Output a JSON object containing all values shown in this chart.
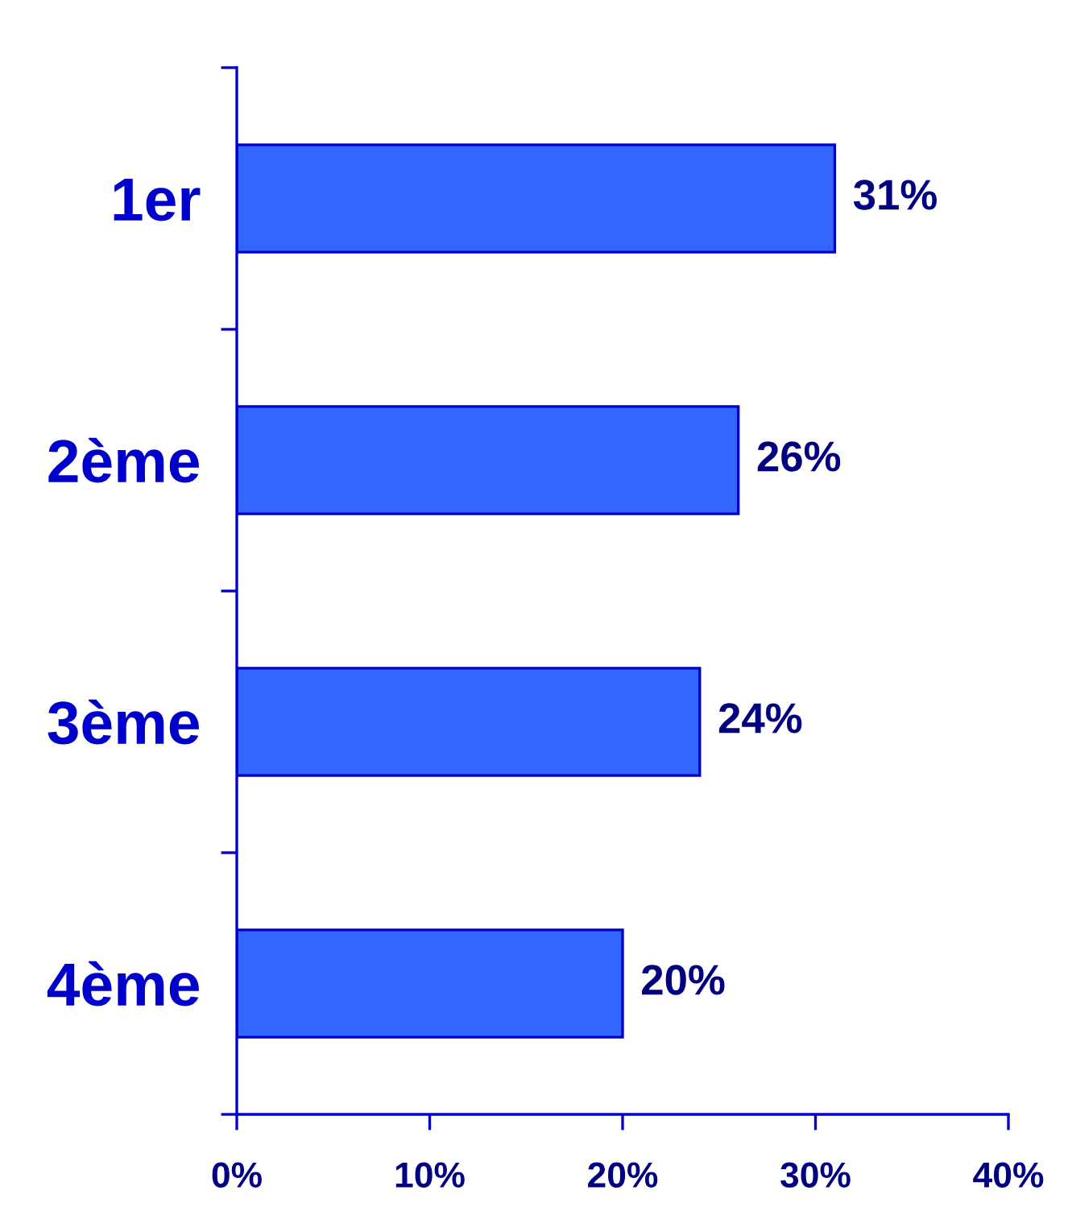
{
  "chart_data": {
    "type": "bar",
    "orientation": "horizontal",
    "categories": [
      "1er",
      "2ème",
      "3ème",
      "4ème"
    ],
    "values": [
      31,
      26,
      24,
      20
    ],
    "value_labels": [
      "31%",
      "26%",
      "24%",
      "20%"
    ],
    "color": "#3366ff",
    "xlim": [
      0,
      40
    ],
    "xticks": [
      {
        "value": 0,
        "label": "0%"
      },
      {
        "value": 10,
        "label": "10%"
      },
      {
        "value": 20,
        "label": "20%"
      },
      {
        "value": 30,
        "label": "30%"
      },
      {
        "value": 40,
        "label": "40%"
      }
    ]
  }
}
